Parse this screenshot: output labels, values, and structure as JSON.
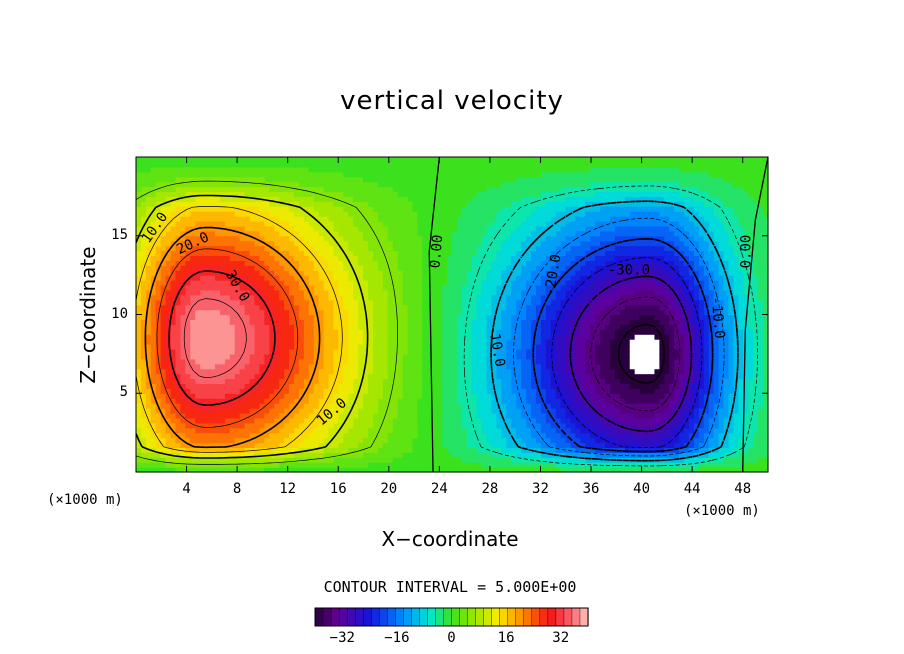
{
  "chart_data": {
    "type": "heatmap",
    "title": "vertical velocity",
    "xlabel": "X−coordinate",
    "ylabel": "Z−coordinate",
    "x_unit": "(×1000 m)",
    "z_unit": "(×1000 m)",
    "xlim": [
      0,
      50
    ],
    "ylim": [
      0,
      20
    ],
    "x_ticks": [
      4,
      8,
      12,
      16,
      20,
      24,
      28,
      32,
      36,
      40,
      44,
      48
    ],
    "y_ticks": [
      5,
      10,
      15
    ],
    "contour_interval_label": "CONTOUR INTERVAL = 5.000E+00",
    "contour_interval": 5,
    "colorbar_range": [
      -40,
      40
    ],
    "colorbar_ticks": [
      -32,
      -16,
      0,
      16,
      32
    ],
    "extrema": [
      {
        "sign": "positive",
        "x": 5.5,
        "z": 8.5,
        "value": 38
      },
      {
        "sign": "negative",
        "x": 40.5,
        "z": 7.5,
        "value": -42
      }
    ],
    "contour_labels": [
      {
        "text": "10.0",
        "x": 1.5,
        "z": 15.5,
        "angle": -55
      },
      {
        "text": "20.0",
        "x": 4.5,
        "z": 14.5,
        "angle": -25
      },
      {
        "text": "30.0",
        "x": 8.0,
        "z": 11.8,
        "angle": 60
      },
      {
        "text": "10.0",
        "x": 15.5,
        "z": 3.8,
        "angle": -40
      },
      {
        "text": "0.00",
        "x": 23.8,
        "z": 14.0,
        "angle": -85
      },
      {
        "text": "-10.0",
        "x": 28.5,
        "z": 8.0,
        "angle": 80
      },
      {
        "text": "-20.0",
        "x": 33.0,
        "z": 12.5,
        "angle": -80
      },
      {
        "text": "-30.0",
        "x": 39.0,
        "z": 12.8,
        "angle": 0
      },
      {
        "text": "-10.0",
        "x": 46.0,
        "z": 9.8,
        "angle": 85
      },
      {
        "text": "0.00",
        "x": 48.3,
        "z": 14.0,
        "angle": -90
      }
    ]
  }
}
